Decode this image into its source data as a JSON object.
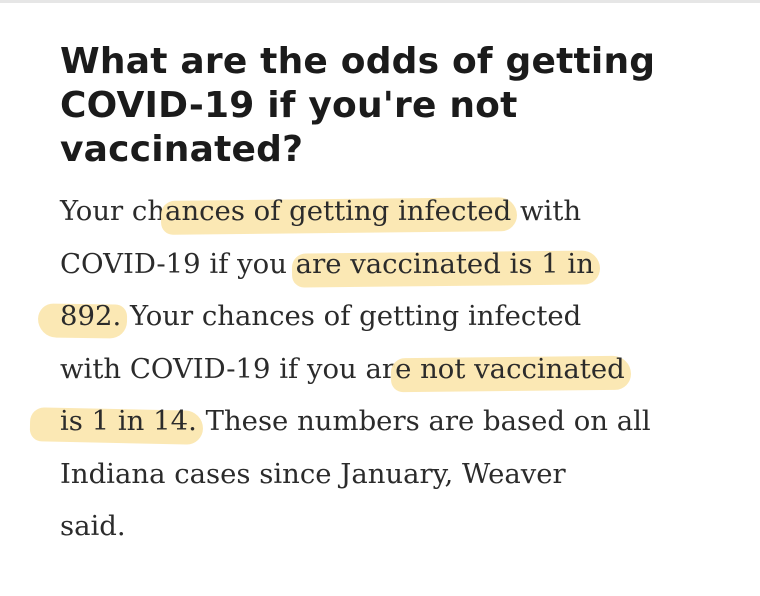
{
  "article": {
    "headline": "What are the odds of getting COVID-19 if you're not vaccinated?",
    "paragraph": {
      "lines": [
        [
          "Your ch",
          "ances of getting infected",
          " with"
        ],
        [
          "COVID-19 if you ",
          "are vaccinated is 1 in",
          ""
        ],
        [
          "",
          "892.",
          " Your chances of getting infected"
        ],
        [
          "with COVID-19 if you ar",
          "e not vaccinated",
          ""
        ],
        [
          "",
          "is 1 in 14.",
          " These numbers are based on all"
        ],
        [
          "Indiana cases since January, Weaver",
          "",
          ""
        ],
        [
          "said.",
          "",
          ""
        ]
      ]
    },
    "highlight_color": "#fbe7b0"
  }
}
